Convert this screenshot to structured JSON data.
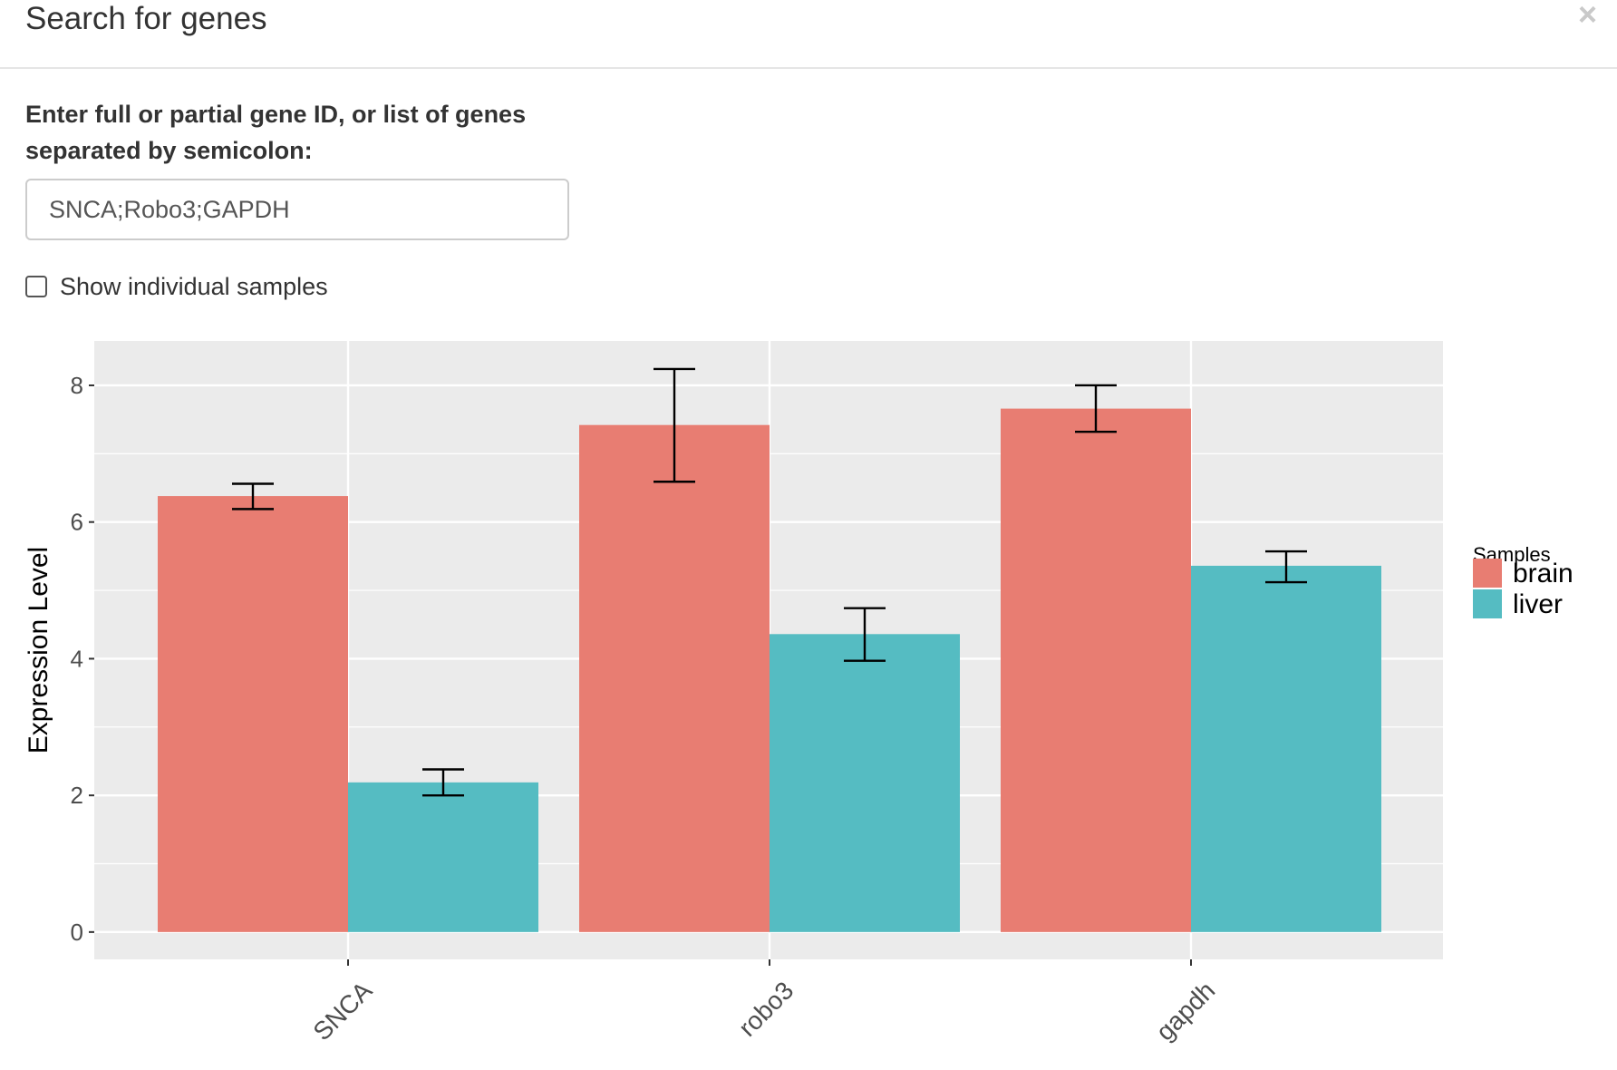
{
  "modal": {
    "title": "Search for genes",
    "close_label": "×"
  },
  "form": {
    "label": "Enter full or partial gene ID, or list of genes separated by semicolon:",
    "input_value": "SNCA;Robo3;GAPDH",
    "checkbox_label": "Show individual samples",
    "checkbox_checked": false
  },
  "chart_data": {
    "type": "bar",
    "categories": [
      "SNCA",
      "robo3",
      "gapdh"
    ],
    "series": [
      {
        "name": "brain",
        "color": "#E87D72",
        "values": [
          6.38,
          7.42,
          7.66
        ],
        "err_low": [
          6.19,
          6.59,
          7.32
        ],
        "err_high": [
          6.56,
          8.24,
          8.0
        ]
      },
      {
        "name": "liver",
        "color": "#55BCC2",
        "values": [
          2.19,
          4.36,
          5.36
        ],
        "err_low": [
          2.0,
          3.97,
          5.12
        ],
        "err_high": [
          2.38,
          4.74,
          5.57
        ]
      }
    ],
    "ylabel": "Expression Level",
    "xlabel": "",
    "ylim": [
      -0.4,
      8.65
    ],
    "yticks": [
      0,
      2,
      4,
      6,
      8
    ],
    "legend_title": "Samples",
    "legend_position": "right",
    "grid": true
  }
}
